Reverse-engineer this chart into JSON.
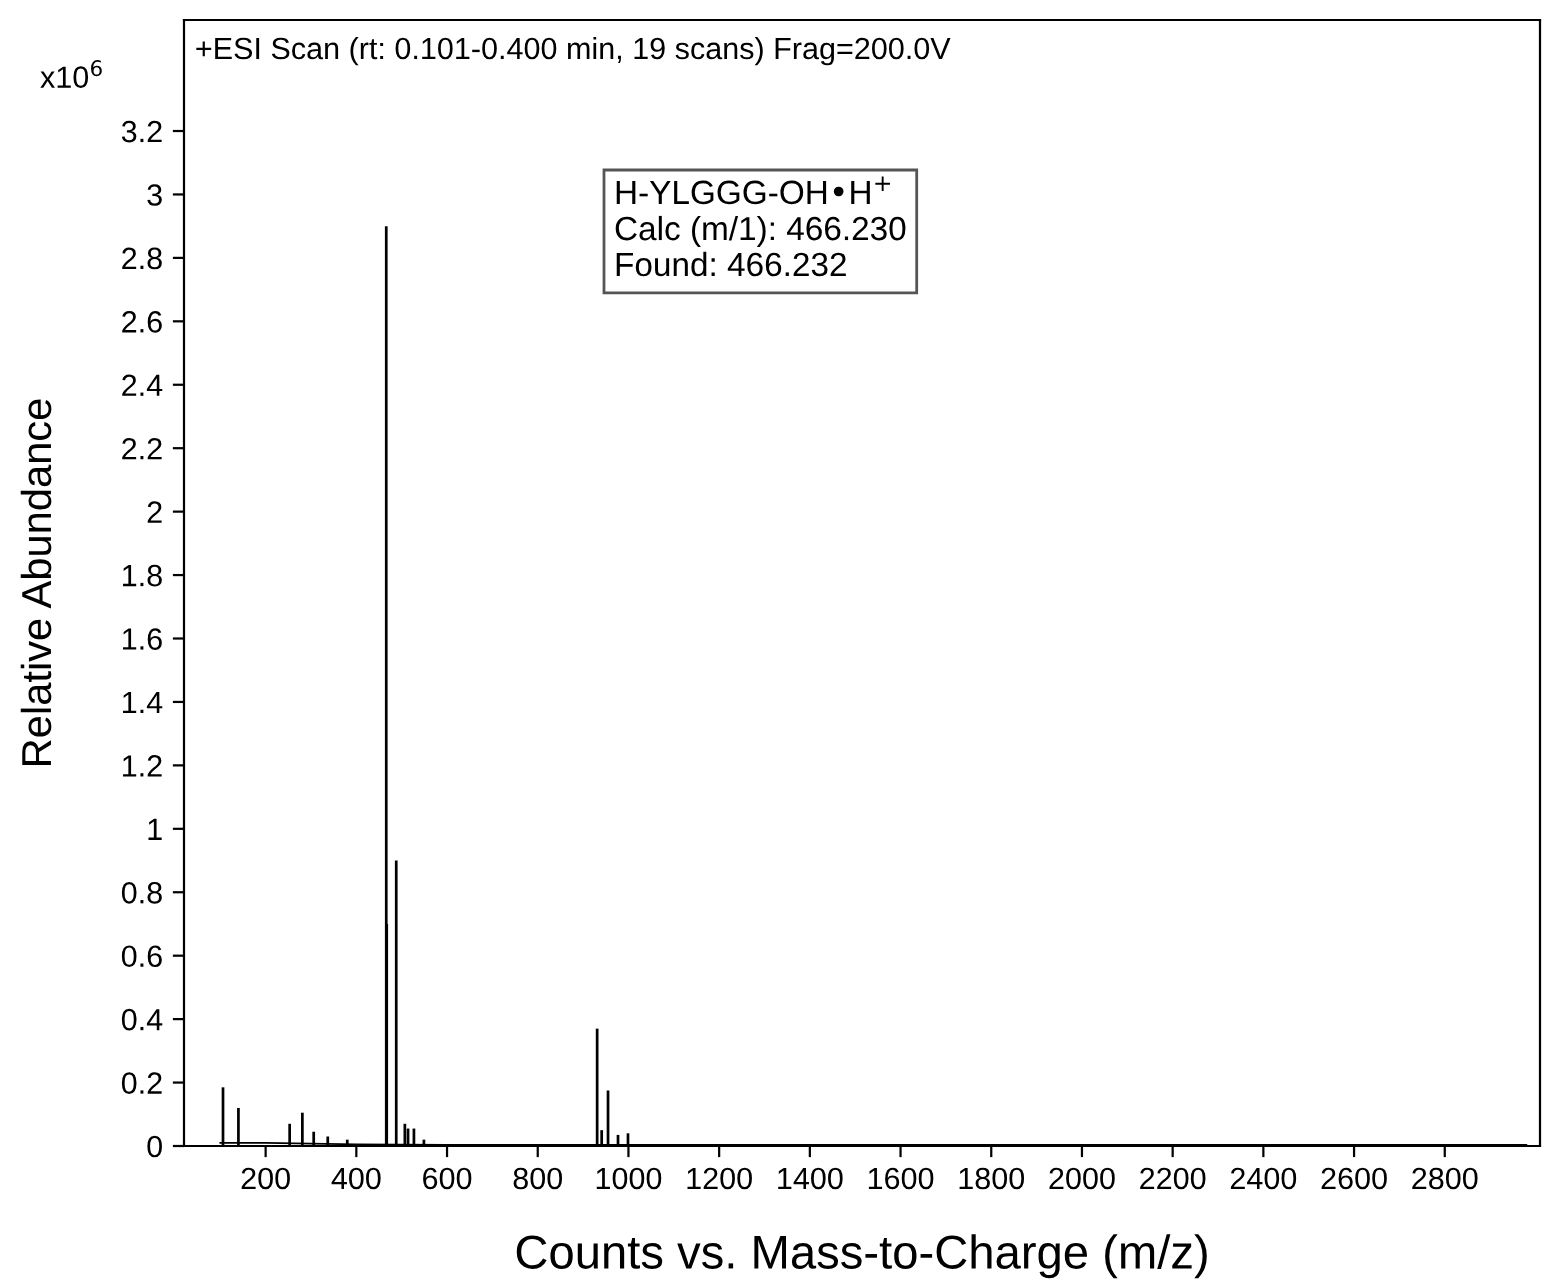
{
  "chart_data": {
    "type": "bar",
    "xlabel": "Counts vs. Mass-to-Charge (m/z)",
    "ylabel": "Relative Abundance",
    "annotations": [
      "+ESI Scan (rt: 0.101-0.400 min, 19 scans) Frag=200.0V",
      "x10$^{6}$",
      "H-YLGGG-OH•H$^{+}$\nCalc (m/1): 466.230\nFound: 466.232"
    ],
    "series": [
      {
        "color": "#000000",
        "x": [
          106,
          140,
          253,
          281,
          306,
          337,
          380,
          466,
          467,
          488,
          507,
          514,
          527,
          549,
          931,
          941,
          955,
          977,
          999
        ],
        "values": [
          0.185,
          0.12,
          0.07,
          0.105,
          0.045,
          0.03,
          0.02,
          2.9,
          0.7,
          0.9,
          0.07,
          0.055,
          0.055,
          0.02,
          0.37,
          0.05,
          0.175,
          0.035,
          0.04
        ]
      },
      {
        "type": "line",
        "color": "#000000",
        "x": [
          100,
          200,
          400,
          600,
          1200,
          2980
        ],
        "values": [
          0.01,
          0.01,
          0.005,
          0.004,
          0.004,
          0.004
        ]
      }
    ],
    "xlim": [
      20,
      3010
    ],
    "ylim": [
      0,
      3.55
    ],
    "xticks": [
      200,
      400,
      600,
      800,
      1000,
      1200,
      1400,
      1600,
      1800,
      2000,
      2200,
      2400,
      2600,
      2800
    ],
    "yticks": [
      0,
      0.2,
      0.4,
      0.6,
      0.8,
      1,
      1.2,
      1.4,
      1.6,
      1.8,
      2,
      2.2,
      2.4,
      2.6,
      2.8,
      3,
      3.2
    ],
    "grid": false,
    "legend": false
  }
}
